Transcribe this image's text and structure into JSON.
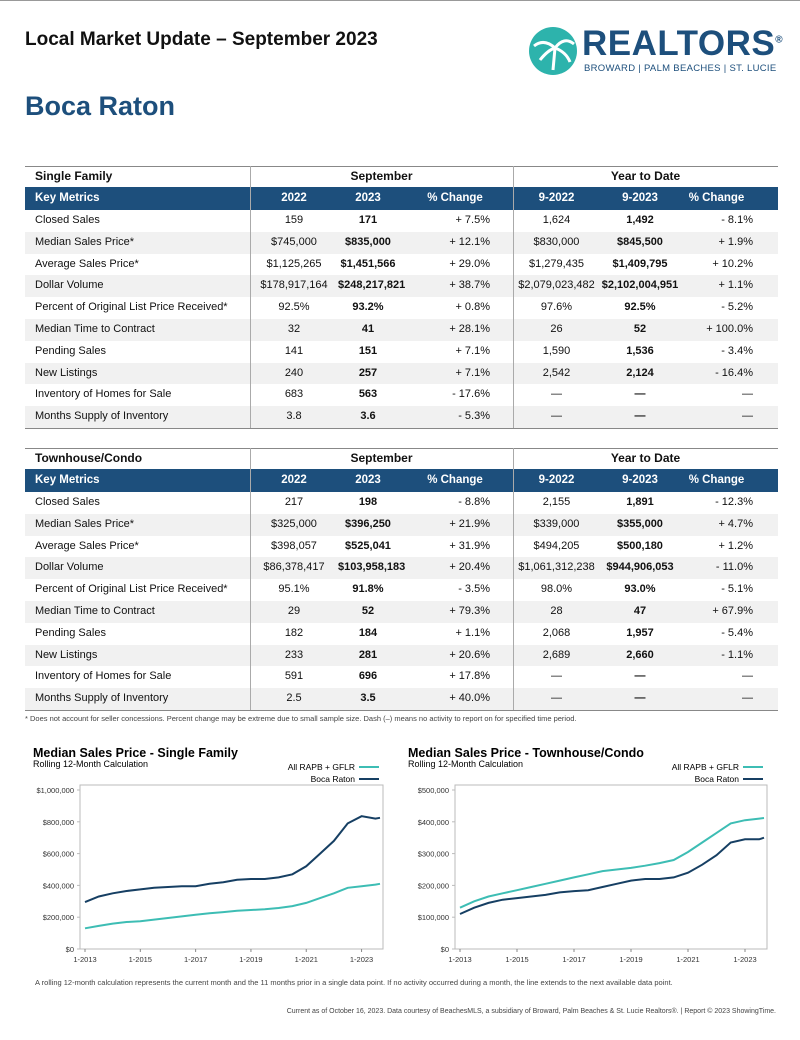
{
  "header": {
    "title": "Local Market Update – September 2023",
    "logo_name": "REALTORS",
    "logo_mark": "®",
    "logo_regions": "BROWARD | PALM BEACHES | ST. LUCIE",
    "city": "Boca Raton"
  },
  "tables": [
    {
      "section": "Single Family",
      "period_headers": [
        "September",
        "Year to Date"
      ],
      "columns": [
        "Key Metrics",
        "2022",
        "2023",
        "% Change",
        "9-2022",
        "9-2023",
        "% Change"
      ],
      "rows": [
        [
          "Closed Sales",
          "159",
          "171",
          "+ 7.5%",
          "1,624",
          "1,492",
          "- 8.1%"
        ],
        [
          "Median Sales Price*",
          "$745,000",
          "$835,000",
          "+ 12.1%",
          "$830,000",
          "$845,500",
          "+ 1.9%"
        ],
        [
          "Average Sales Price*",
          "$1,125,265",
          "$1,451,566",
          "+ 29.0%",
          "$1,279,435",
          "$1,409,795",
          "+ 10.2%"
        ],
        [
          "Dollar Volume",
          "$178,917,164",
          "$248,217,821",
          "+ 38.7%",
          "$2,079,023,482",
          "$2,102,004,951",
          "+ 1.1%"
        ],
        [
          "Percent of Original List Price Received*",
          "92.5%",
          "93.2%",
          "+ 0.8%",
          "97.6%",
          "92.5%",
          "- 5.2%"
        ],
        [
          "Median Time to Contract",
          "32",
          "41",
          "+ 28.1%",
          "26",
          "52",
          "+ 100.0%"
        ],
        [
          "Pending Sales",
          "141",
          "151",
          "+ 7.1%",
          "1,590",
          "1,536",
          "- 3.4%"
        ],
        [
          "New Listings",
          "240",
          "257",
          "+ 7.1%",
          "2,542",
          "2,124",
          "- 16.4%"
        ],
        [
          "Inventory of Homes for Sale",
          "683",
          "563",
          "- 17.6%",
          "—",
          "—",
          "—"
        ],
        [
          "Months Supply of Inventory",
          "3.8",
          "3.6",
          "- 5.3%",
          "—",
          "—",
          "—"
        ]
      ]
    },
    {
      "section": "Townhouse/Condo",
      "period_headers": [
        "September",
        "Year to Date"
      ],
      "columns": [
        "Key Metrics",
        "2022",
        "2023",
        "% Change",
        "9-2022",
        "9-2023",
        "% Change"
      ],
      "rows": [
        [
          "Closed Sales",
          "217",
          "198",
          "- 8.8%",
          "2,155",
          "1,891",
          "- 12.3%"
        ],
        [
          "Median Sales Price*",
          "$325,000",
          "$396,250",
          "+ 21.9%",
          "$339,000",
          "$355,000",
          "+ 4.7%"
        ],
        [
          "Average Sales Price*",
          "$398,057",
          "$525,041",
          "+ 31.9%",
          "$494,205",
          "$500,180",
          "+ 1.2%"
        ],
        [
          "Dollar Volume",
          "$86,378,417",
          "$103,958,183",
          "+ 20.4%",
          "$1,061,312,238",
          "$944,906,053",
          "- 11.0%"
        ],
        [
          "Percent of Original List Price Received*",
          "95.1%",
          "91.8%",
          "- 3.5%",
          "98.0%",
          "93.0%",
          "- 5.1%"
        ],
        [
          "Median Time to Contract",
          "29",
          "52",
          "+ 79.3%",
          "28",
          "47",
          "+ 67.9%"
        ],
        [
          "Pending Sales",
          "182",
          "184",
          "+ 1.1%",
          "2,068",
          "1,957",
          "- 5.4%"
        ],
        [
          "New Listings",
          "233",
          "281",
          "+ 20.6%",
          "2,689",
          "2,660",
          "- 1.1%"
        ],
        [
          "Inventory of Homes for Sale",
          "591",
          "696",
          "+ 17.8%",
          "—",
          "—",
          "—"
        ],
        [
          "Months Supply of Inventory",
          "2.5",
          "3.5",
          "+ 40.0%",
          "—",
          "—",
          "—"
        ]
      ]
    }
  ],
  "footnote": "* Does not account for seller concessions. Percent change may be extreme due to small sample size. Dash (–) means no activity to report on for specified time period.",
  "chart_data": [
    {
      "type": "line",
      "title": "Median Sales Price - Single Family",
      "subtitle": "Rolling 12-Month Calculation",
      "x": [
        "1-2013",
        "7-2013",
        "1-2014",
        "7-2014",
        "1-2015",
        "7-2015",
        "1-2016",
        "7-2016",
        "1-2017",
        "7-2017",
        "1-2018",
        "7-2018",
        "1-2019",
        "7-2019",
        "1-2020",
        "7-2020",
        "1-2021",
        "7-2021",
        "1-2022",
        "7-2022",
        "1-2023",
        "7-2023",
        "9-2023"
      ],
      "series": [
        {
          "name": "All RAPB + GFLR",
          "color": "#3dbdb4",
          "values": [
            130000,
            145000,
            160000,
            170000,
            175000,
            185000,
            195000,
            205000,
            215000,
            225000,
            232000,
            240000,
            245000,
            250000,
            258000,
            270000,
            290000,
            320000,
            350000,
            385000,
            395000,
            405000,
            410000
          ]
        },
        {
          "name": "Boca Raton",
          "color": "#163f63",
          "values": [
            295000,
            330000,
            350000,
            365000,
            375000,
            385000,
            390000,
            395000,
            395000,
            410000,
            420000,
            435000,
            440000,
            440000,
            450000,
            470000,
            520000,
            600000,
            680000,
            790000,
            835000,
            820000,
            825000
          ]
        }
      ],
      "xlim": [
        "1-2013",
        "9-2023"
      ],
      "xticks": [
        "1-2013",
        "1-2015",
        "1-2017",
        "1-2019",
        "1-2021",
        "1-2023"
      ],
      "ylim": [
        0,
        1000000
      ],
      "yticks": [
        {
          "value": 0,
          "label": "$0"
        },
        {
          "value": 200000,
          "label": "$200,000"
        },
        {
          "value": 400000,
          "label": "$400,000"
        },
        {
          "value": 600000,
          "label": "$600,000"
        },
        {
          "value": 800000,
          "label": "$800,000"
        },
        {
          "value": 1000000,
          "label": "$1,000,000"
        }
      ],
      "grid": false,
      "legend": "top-right"
    },
    {
      "type": "line",
      "title": "Median Sales Price - Townhouse/Condo",
      "subtitle": "Rolling 12-Month Calculation",
      "x": [
        "1-2013",
        "7-2013",
        "1-2014",
        "7-2014",
        "1-2015",
        "7-2015",
        "1-2016",
        "7-2016",
        "1-2017",
        "7-2017",
        "1-2018",
        "7-2018",
        "1-2019",
        "7-2019",
        "1-2020",
        "7-2020",
        "1-2021",
        "7-2021",
        "1-2022",
        "7-2022",
        "1-2023",
        "7-2023",
        "9-2023"
      ],
      "series": [
        {
          "name": "All RAPB + GFLR",
          "color": "#3dbdb4",
          "values": [
            130000,
            150000,
            165000,
            175000,
            185000,
            195000,
            205000,
            215000,
            225000,
            235000,
            245000,
            250000,
            255000,
            262000,
            270000,
            280000,
            305000,
            335000,
            365000,
            395000,
            405000,
            410000,
            412000
          ]
        },
        {
          "name": "Boca Raton",
          "color": "#163f63",
          "values": [
            110000,
            130000,
            145000,
            155000,
            160000,
            165000,
            170000,
            178000,
            182000,
            185000,
            195000,
            205000,
            215000,
            220000,
            220000,
            225000,
            240000,
            265000,
            295000,
            335000,
            345000,
            345000,
            350000
          ]
        }
      ],
      "xlim": [
        "1-2013",
        "9-2023"
      ],
      "xticks": [
        "1-2013",
        "1-2015",
        "1-2017",
        "1-2019",
        "1-2021",
        "1-2023"
      ],
      "ylim": [
        0,
        500000
      ],
      "yticks": [
        {
          "value": 0,
          "label": "$0"
        },
        {
          "value": 100000,
          "label": "$100,000"
        },
        {
          "value": 200000,
          "label": "$200,000"
        },
        {
          "value": 300000,
          "label": "$300,000"
        },
        {
          "value": 400000,
          "label": "$400,000"
        },
        {
          "value": 500000,
          "label": "$500,000"
        }
      ],
      "grid": false,
      "legend": "top-right"
    }
  ],
  "chart_note": "A rolling 12-month calculation represents the current month and the 11 months prior in a single data point. If no activity occurred during a month, the line extends to the next available data point.",
  "footer": "Current as of October 16, 2023. Data courtesy of BeachesMLS, a subsidiary of Broward, Palm Beaches & St. Lucie Realtors®. | Report © 2023 ShowingTime."
}
